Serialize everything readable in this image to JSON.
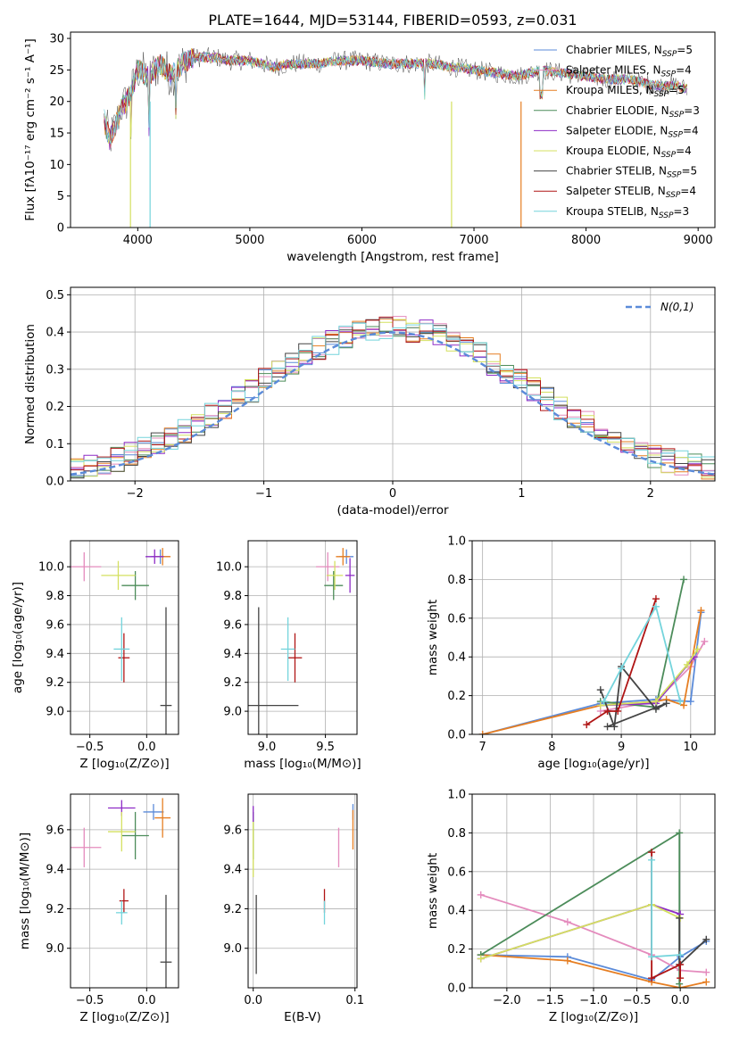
{
  "title": "PLATE=1644, MJD=53144, FIBERID=0593, z=0.031",
  "series": [
    {
      "name": "Chabrier MILES",
      "nssp": "5",
      "color": "#5b8bd9"
    },
    {
      "name": "Salpeter MILES",
      "nssp": "4",
      "color": "#e48bbd"
    },
    {
      "name": "Kroupa MILES",
      "nssp": "5",
      "color": "#e67e22"
    },
    {
      "name": "Chabrier ELODIE",
      "nssp": "3",
      "color": "#4c8c5a"
    },
    {
      "name": "Salpeter ELODIE",
      "nssp": "4",
      "color": "#8e2cc6"
    },
    {
      "name": "Kroupa ELODIE",
      "nssp": "4",
      "color": "#d4e060"
    },
    {
      "name": "Chabrier STELIB",
      "nssp": "5",
      "color": "#444444"
    },
    {
      "name": "Salpeter STELIB",
      "nssp": "4",
      "color": "#b01515"
    },
    {
      "name": "Kroupa STELIB",
      "nssp": "3",
      "color": "#74d4dc"
    }
  ],
  "chart_data": [
    {
      "id": "spectrum",
      "type": "line",
      "xlabel": "wavelength [Angstrom, rest frame]",
      "ylabel": "Flux [fλ10⁻¹⁷ erg cm⁻² s⁻¹ A⁻¹]",
      "xlim": [
        3400,
        9150
      ],
      "ylim": [
        0,
        31
      ],
      "xticks": [
        4000,
        5000,
        6000,
        7000,
        8000,
        9000
      ],
      "yticks": [
        0,
        5,
        10,
        15,
        20,
        25,
        30
      ],
      "legend": "top-right",
      "continuum": [
        [
          3700,
          17
        ],
        [
          3750,
          14
        ],
        [
          3800,
          16
        ],
        [
          3850,
          19
        ],
        [
          3900,
          20
        ],
        [
          3950,
          22
        ],
        [
          4000,
          25
        ],
        [
          4100,
          24
        ],
        [
          4200,
          26
        ],
        [
          4300,
          24
        ],
        [
          4400,
          26
        ],
        [
          4500,
          27
        ],
        [
          4700,
          27
        ],
        [
          4800,
          26.5
        ],
        [
          5000,
          26.5
        ],
        [
          5200,
          25.5
        ],
        [
          5400,
          26
        ],
        [
          5600,
          26
        ],
        [
          5800,
          26.5
        ],
        [
          6000,
          26.5
        ],
        [
          6200,
          26
        ],
        [
          6400,
          26
        ],
        [
          6600,
          26
        ],
        [
          6800,
          25.5
        ],
        [
          7000,
          25
        ],
        [
          7200,
          24.5
        ],
        [
          7400,
          24
        ],
        [
          7600,
          25
        ],
        [
          7800,
          24.5
        ],
        [
          8000,
          24
        ],
        [
          8200,
          23.5
        ],
        [
          8400,
          23.5
        ],
        [
          8600,
          22.5
        ],
        [
          8800,
          22.5
        ],
        [
          8900,
          22
        ]
      ]
    },
    {
      "id": "residuals",
      "type": "step",
      "xlabel": "(data-model)/error",
      "ylabel": "Normed distribution",
      "xlim": [
        -2.5,
        2.5
      ],
      "ylim": [
        0,
        0.52
      ],
      "xticks": [
        -2,
        -1,
        0,
        1,
        2
      ],
      "yticks": [
        0.0,
        0.1,
        0.2,
        0.3,
        0.4,
        0.5
      ],
      "normal_curve": {
        "label": "N(0,1)",
        "mu": 0,
        "sigma": 1,
        "color": "#5b8bd9"
      },
      "legend": "top-right"
    },
    {
      "id": "age-vs-Z",
      "type": "scatter",
      "xlabel": "Z [log₁₀(Z/Z⊙)]",
      "ylabel": "age  [log₁₀(age/yr)]",
      "xlim": [
        -0.67,
        0.28
      ],
      "ylim": [
        8.84,
        10.18
      ],
      "xticks": [
        -0.5,
        0.0
      ],
      "yticks": [
        9.0,
        9.2,
        9.4,
        9.6,
        9.8,
        10.0
      ],
      "points": [
        {
          "series": 0,
          "x": 0.12,
          "y": 10.07,
          "ex": 0.08,
          "ey": 0.05
        },
        {
          "series": 1,
          "x": -0.55,
          "y": 10.0,
          "ex": 0.15,
          "ey": 0.1
        },
        {
          "series": 2,
          "x": 0.14,
          "y": 10.07,
          "ex": 0.07,
          "ey": 0.06
        },
        {
          "series": 3,
          "x": -0.1,
          "y": 9.87,
          "ex": 0.12,
          "ey": 0.1
        },
        {
          "series": 4,
          "x": 0.07,
          "y": 10.07,
          "ex": 0.08,
          "ey": 0.05
        },
        {
          "series": 5,
          "x": -0.25,
          "y": 9.94,
          "ex": 0.15,
          "ey": 0.1
        },
        {
          "series": 6,
          "x": 0.17,
          "y": 9.04,
          "ex": 0.05,
          "ey": 0.68
        },
        {
          "series": 7,
          "x": -0.2,
          "y": 9.37,
          "ex": 0.05,
          "ey": 0.17
        },
        {
          "series": 8,
          "x": -0.22,
          "y": 9.43,
          "ex": 0.07,
          "ey": 0.22
        }
      ]
    },
    {
      "id": "age-vs-mass",
      "type": "scatter",
      "xlabel": "mass [log₁₀(M/M⊙)]",
      "ylabel": "",
      "xlim": [
        8.84,
        9.77
      ],
      "ylim": [
        8.84,
        10.18
      ],
      "xticks": [
        9.0,
        9.5
      ],
      "yticks": [
        9.0,
        9.2,
        9.4,
        9.6,
        9.8,
        10.0
      ],
      "points": [
        {
          "series": 0,
          "x": 9.68,
          "y": 10.07,
          "ex": 0.06,
          "ey": 0.05
        },
        {
          "series": 1,
          "x": 9.52,
          "y": 10.0,
          "ex": 0.1,
          "ey": 0.1
        },
        {
          "series": 2,
          "x": 9.65,
          "y": 10.07,
          "ex": 0.06,
          "ey": 0.06
        },
        {
          "series": 3,
          "x": 9.57,
          "y": 9.87,
          "ex": 0.08,
          "ey": 0.1
        },
        {
          "series": 4,
          "x": 9.71,
          "y": 9.94,
          "ex": 0.04,
          "ey": 0.12
        },
        {
          "series": 5,
          "x": 9.58,
          "y": 9.94,
          "ex": 0.07,
          "ey": 0.1
        },
        {
          "series": 6,
          "x": 8.93,
          "y": 9.04,
          "ex": 0.34,
          "ey": 0.68
        },
        {
          "series": 7,
          "x": 9.24,
          "y": 9.37,
          "ex": 0.06,
          "ey": 0.17
        },
        {
          "series": 8,
          "x": 9.18,
          "y": 9.43,
          "ex": 0.06,
          "ey": 0.22
        }
      ]
    },
    {
      "id": "massweight-vs-age",
      "type": "line",
      "xlabel": "age  [log₁₀(age/yr)]",
      "ylabel": "mass weight",
      "xlim": [
        6.85,
        10.35
      ],
      "ylim": [
        0,
        1.0
      ],
      "xticks": [
        7,
        8,
        9,
        10
      ],
      "yticks": [
        0.0,
        0.2,
        0.4,
        0.6,
        0.8,
        1.0
      ],
      "lines": [
        {
          "series": 0,
          "x": [
            7.0,
            8.7,
            9.5,
            10.0,
            10.15
          ],
          "y": [
            0.0,
            0.16,
            0.18,
            0.17,
            0.63
          ]
        },
        {
          "series": 1,
          "x": [
            8.7,
            9.5,
            10.0,
            10.2
          ],
          "y": [
            0.12,
            0.17,
            0.35,
            0.48
          ]
        },
        {
          "series": 2,
          "x": [
            7.0,
            8.7,
            9.5,
            9.65,
            9.9,
            10.15
          ],
          "y": [
            0.0,
            0.15,
            0.17,
            0.18,
            0.15,
            0.64
          ]
        },
        {
          "series": 3,
          "x": [
            8.7,
            9.5,
            9.9
          ],
          "y": [
            0.17,
            0.14,
            0.8
          ]
        },
        {
          "series": 4,
          "x": [
            8.7,
            9.5,
            10.05
          ],
          "y": [
            0.15,
            0.16,
            0.4
          ]
        },
        {
          "series": 5,
          "x": [
            8.7,
            9.5,
            9.95,
            10.1
          ],
          "y": [
            0.15,
            0.17,
            0.36,
            0.44
          ]
        },
        {
          "series": 6,
          "x": [
            8.7,
            8.9,
            9.0,
            9.5,
            9.65,
            8.8
          ],
          "y": [
            0.23,
            0.04,
            0.35,
            0.13,
            0.16,
            0.04
          ]
        },
        {
          "series": 7,
          "x": [
            8.5,
            8.8,
            8.95,
            9.5
          ],
          "y": [
            0.05,
            0.12,
            0.12,
            0.7
          ]
        },
        {
          "series": 8,
          "x": [
            8.75,
            9.0,
            9.5,
            9.85
          ],
          "y": [
            0.17,
            0.34,
            0.66,
            0.17
          ]
        }
      ]
    },
    {
      "id": "mass-vs-Z",
      "type": "scatter",
      "xlabel": "Z [log₁₀(Z/Z⊙)]",
      "ylabel": "mass [log₁₀(M/M⊙)]",
      "xlim": [
        -0.67,
        0.28
      ],
      "ylim": [
        8.8,
        9.78
      ],
      "xticks": [
        -0.5,
        0.0
      ],
      "yticks": [
        9.0,
        9.2,
        9.4,
        9.6
      ],
      "points": [
        {
          "series": 0,
          "x": 0.06,
          "y": 9.69,
          "ex": 0.09,
          "ey": 0.04
        },
        {
          "series": 1,
          "x": -0.55,
          "y": 9.51,
          "ex": 0.15,
          "ey": 0.1
        },
        {
          "series": 2,
          "x": 0.14,
          "y": 9.66,
          "ex": 0.07,
          "ey": 0.1
        },
        {
          "series": 3,
          "x": -0.1,
          "y": 9.57,
          "ex": 0.12,
          "ey": 0.12
        },
        {
          "series": 4,
          "x": -0.22,
          "y": 9.71,
          "ex": 0.12,
          "ey": 0.04
        },
        {
          "series": 5,
          "x": -0.22,
          "y": 9.59,
          "ex": 0.12,
          "ey": 0.1
        },
        {
          "series": 6,
          "x": 0.17,
          "y": 8.93,
          "ex": 0.05,
          "ey": 0.34
        },
        {
          "series": 7,
          "x": -0.2,
          "y": 9.24,
          "ex": 0.04,
          "ey": 0.06
        },
        {
          "series": 8,
          "x": -0.22,
          "y": 9.18,
          "ex": 0.05,
          "ey": 0.06
        }
      ]
    },
    {
      "id": "mass-vs-EBV",
      "type": "scatter",
      "xlabel": "E(B-V)",
      "ylabel": "",
      "xlim": [
        -0.005,
        0.102
      ],
      "ylim": [
        8.8,
        9.78
      ],
      "xticks": [
        0.0,
        0.1
      ],
      "yticks": [
        9.0,
        9.2,
        9.4,
        9.6
      ],
      "points": [
        {
          "series": 0,
          "x": 0.098,
          "y": 9.69,
          "ex": 0.0,
          "ey": 0.04
        },
        {
          "series": 1,
          "x": 0.084,
          "y": 9.51,
          "ex": 0.0,
          "ey": 0.1
        },
        {
          "series": 2,
          "x": 0.098,
          "y": 9.6,
          "ex": 0.0,
          "ey": 0.1
        },
        {
          "series": 3,
          "x": 0.0,
          "y": 9.57,
          "ex": 0.0,
          "ey": 0.12
        },
        {
          "series": 4,
          "x": 0.0,
          "y": 9.68,
          "ex": 0.0,
          "ey": 0.04
        },
        {
          "series": 5,
          "x": 0.0,
          "y": 9.5,
          "ex": 0.0,
          "ey": 0.14
        },
        {
          "series": 6,
          "x": 0.003,
          "y": 9.07,
          "ex": 0.0,
          "ey": 0.2
        },
        {
          "series": 7,
          "x": 0.07,
          "y": 9.24,
          "ex": 0.0,
          "ey": 0.06
        },
        {
          "series": 8,
          "x": 0.07,
          "y": 9.18,
          "ex": 0.0,
          "ey": 0.06
        }
      ]
    },
    {
      "id": "massweight-vs-Z",
      "type": "line",
      "xlabel": "Z [log₁₀(Z/Z⊙)]",
      "ylabel": "mass weight",
      "xlim": [
        -2.4,
        0.4
      ],
      "ylim": [
        0,
        1.0
      ],
      "xticks": [
        -2.0,
        -1.5,
        -1.0,
        -0.5,
        0.0
      ],
      "yticks": [
        0.0,
        0.2,
        0.4,
        0.6,
        0.8,
        1.0
      ],
      "lines": [
        {
          "series": 0,
          "x": [
            -2.3,
            -1.3,
            -0.33,
            0.0,
            0.3
          ],
          "y": [
            0.17,
            0.16,
            0.04,
            0.16,
            0.24
          ]
        },
        {
          "series": 1,
          "x": [
            -2.3,
            -1.3,
            -0.33,
            0.0,
            0.3
          ],
          "y": [
            0.48,
            0.34,
            0.17,
            0.09,
            0.08
          ]
        },
        {
          "series": 2,
          "x": [
            -2.3,
            -1.3,
            -0.33,
            0.0,
            0.3
          ],
          "y": [
            0.17,
            0.14,
            0.03,
            0.0,
            0.03
          ]
        },
        {
          "series": 3,
          "x": [
            -2.3,
            -0.01,
            -0.01
          ],
          "y": [
            0.17,
            0.8,
            0.02
          ]
        },
        {
          "series": 4,
          "x": [
            -2.3,
            -0.33,
            0.0
          ],
          "y": [
            0.15,
            0.43,
            0.38
          ]
        },
        {
          "series": 5,
          "x": [
            -2.3,
            -0.33,
            0.0
          ],
          "y": [
            0.15,
            0.43,
            0.36
          ]
        },
        {
          "series": 6,
          "x": [
            -0.01,
            -0.01,
            0.3
          ],
          "y": [
            0.36,
            0.12,
            0.25
          ]
        },
        {
          "series": 7,
          "x": [
            -0.33,
            -0.33,
            0.0,
            0.0
          ],
          "y": [
            0.7,
            0.05,
            0.12,
            0.05
          ]
        },
        {
          "series": 8,
          "x": [
            -0.33,
            -0.33,
            0.0
          ],
          "y": [
            0.66,
            0.16,
            0.17
          ]
        }
      ]
    }
  ]
}
